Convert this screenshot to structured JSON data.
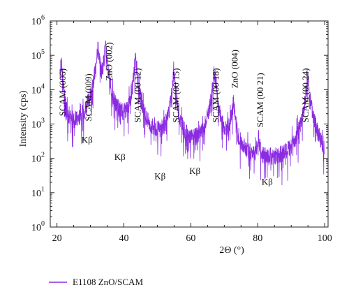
{
  "chart_data": {
    "type": "line",
    "xlabel": "2Θ (°)",
    "ylabel": "Intensity (cps)",
    "xlim": [
      18,
      101
    ],
    "ylim": [
      1,
      1000000
    ],
    "yscale": "log",
    "grid": false,
    "legend_position": "bottom-left",
    "x_ticks": [
      "20",
      "40",
      "60",
      "80",
      "100"
    ],
    "x_tick_values": [
      20,
      40,
      60,
      80,
      100
    ],
    "y_ticks": [
      {
        "base": "10",
        "exp": "0",
        "value": 1
      },
      {
        "base": "10",
        "exp": "1",
        "value": 10
      },
      {
        "base": "10",
        "exp": "2",
        "value": 100
      },
      {
        "base": "10",
        "exp": "3",
        "value": 1000
      },
      {
        "base": "10",
        "exp": "4",
        "value": 10000
      },
      {
        "base": "10",
        "exp": "5",
        "value": 100000
      },
      {
        "base": "10",
        "exp": "6",
        "value": 1000000
      }
    ],
    "series": [
      {
        "name": "E1108 ZnO/SCAM",
        "color": "#8b2be2",
        "baseline": 8,
        "peaks": [
          {
            "x": 21.3,
            "y": 55000,
            "w": 0.35
          },
          {
            "x": 28.9,
            "y": 150,
            "w": 0.18
          },
          {
            "x": 32.2,
            "y": 170000,
            "w": 0.4
          },
          {
            "x": 34.5,
            "y": 160000,
            "w": 0.4
          },
          {
            "x": 38.2,
            "y": 80,
            "w": 0.18
          },
          {
            "x": 43.5,
            "y": 75000,
            "w": 0.4
          },
          {
            "x": 49.5,
            "y": 20,
            "w": 0.15
          },
          {
            "x": 54.9,
            "y": 28000,
            "w": 0.4
          },
          {
            "x": 60.0,
            "y": 28,
            "w": 0.15
          },
          {
            "x": 67.0,
            "y": 30000,
            "w": 0.45
          },
          {
            "x": 72.6,
            "y": 4500,
            "w": 0.4
          },
          {
            "x": 80.2,
            "y": 380,
            "w": 0.25
          },
          {
            "x": 84.0,
            "y": 12,
            "w": 0.15
          },
          {
            "x": 95.0,
            "y": 19000,
            "w": 0.5
          }
        ]
      }
    ],
    "annotations": [
      {
        "text": "SCAM (006)",
        "x": 21.8,
        "y": 1700,
        "kind": "vertical"
      },
      {
        "text": "SCAM (009)",
        "x": 29.5,
        "y": 1200,
        "kind": "vertical"
      },
      {
        "text": "ZnO (002)",
        "x": 35.6,
        "y": 18000,
        "kind": "vertical"
      },
      {
        "text": "SCAM (00 12)",
        "x": 44.2,
        "y": 1100,
        "kind": "vertical"
      },
      {
        "text": "SCAM (00 15)",
        "x": 55.6,
        "y": 1100,
        "kind": "vertical"
      },
      {
        "text": "SCAM (00 18)",
        "x": 67.5,
        "y": 1100,
        "kind": "vertical"
      },
      {
        "text": "ZnO (004)",
        "x": 73.2,
        "y": 11000,
        "kind": "vertical"
      },
      {
        "text": "SCAM (00 21)",
        "x": 80.8,
        "y": 800,
        "kind": "vertical"
      },
      {
        "text": "SCAM (00 24)",
        "x": 94.3,
        "y": 1100,
        "kind": "vertical"
      },
      {
        "text": "Kβ",
        "x": 29.0,
        "y": 280,
        "kind": "horizontal"
      },
      {
        "text": "Kβ",
        "x": 38.8,
        "y": 90,
        "kind": "horizontal"
      },
      {
        "text": "Kβ",
        "x": 50.8,
        "y": 25,
        "kind": "horizontal"
      },
      {
        "text": "Kβ",
        "x": 61.2,
        "y": 35,
        "kind": "horizontal"
      },
      {
        "text": "Kβ",
        "x": 82.8,
        "y": 17,
        "kind": "horizontal"
      }
    ]
  }
}
